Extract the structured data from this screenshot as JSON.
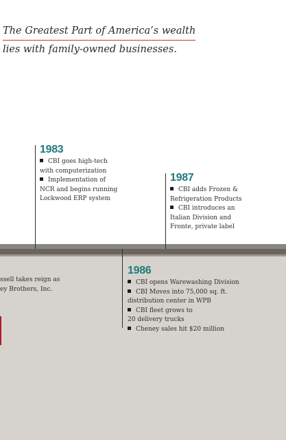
{
  "quote": {
    "line1": "The Greatest Part of America’s wealth",
    "line2": "lies with family-owned businesses."
  },
  "events": {
    "e1983": {
      "year": "1983",
      "lines": [
        "CBI goes high-tech",
        "with computerization",
        "Implementation of",
        "NCR and begins running",
        "Lockwood ERP system"
      ]
    },
    "e1987": {
      "year": "1987",
      "lines": [
        "CBI adds Frozen &",
        "Refrigeration Products",
        "CBI introduces an",
        "Italian Division and",
        "Fronte, private label"
      ]
    },
    "e1986": {
      "year": "1986",
      "lines": [
        "CBI opens Warewashing Division",
        "CBI Moves into 75,000 sq. ft.",
        "distribution center in WPB",
        "CBI fleet grows to",
        "20 delivery trucks",
        "Cheney sales hit $20 million"
      ]
    }
  },
  "left_text": {
    "line1": "ssell takes reign as",
    "line2": "ey Brothers, Inc."
  },
  "colors": {
    "accent_teal": "#1f7a7a",
    "accent_red": "#c0392b",
    "lower_background": "#d6d2cd"
  }
}
